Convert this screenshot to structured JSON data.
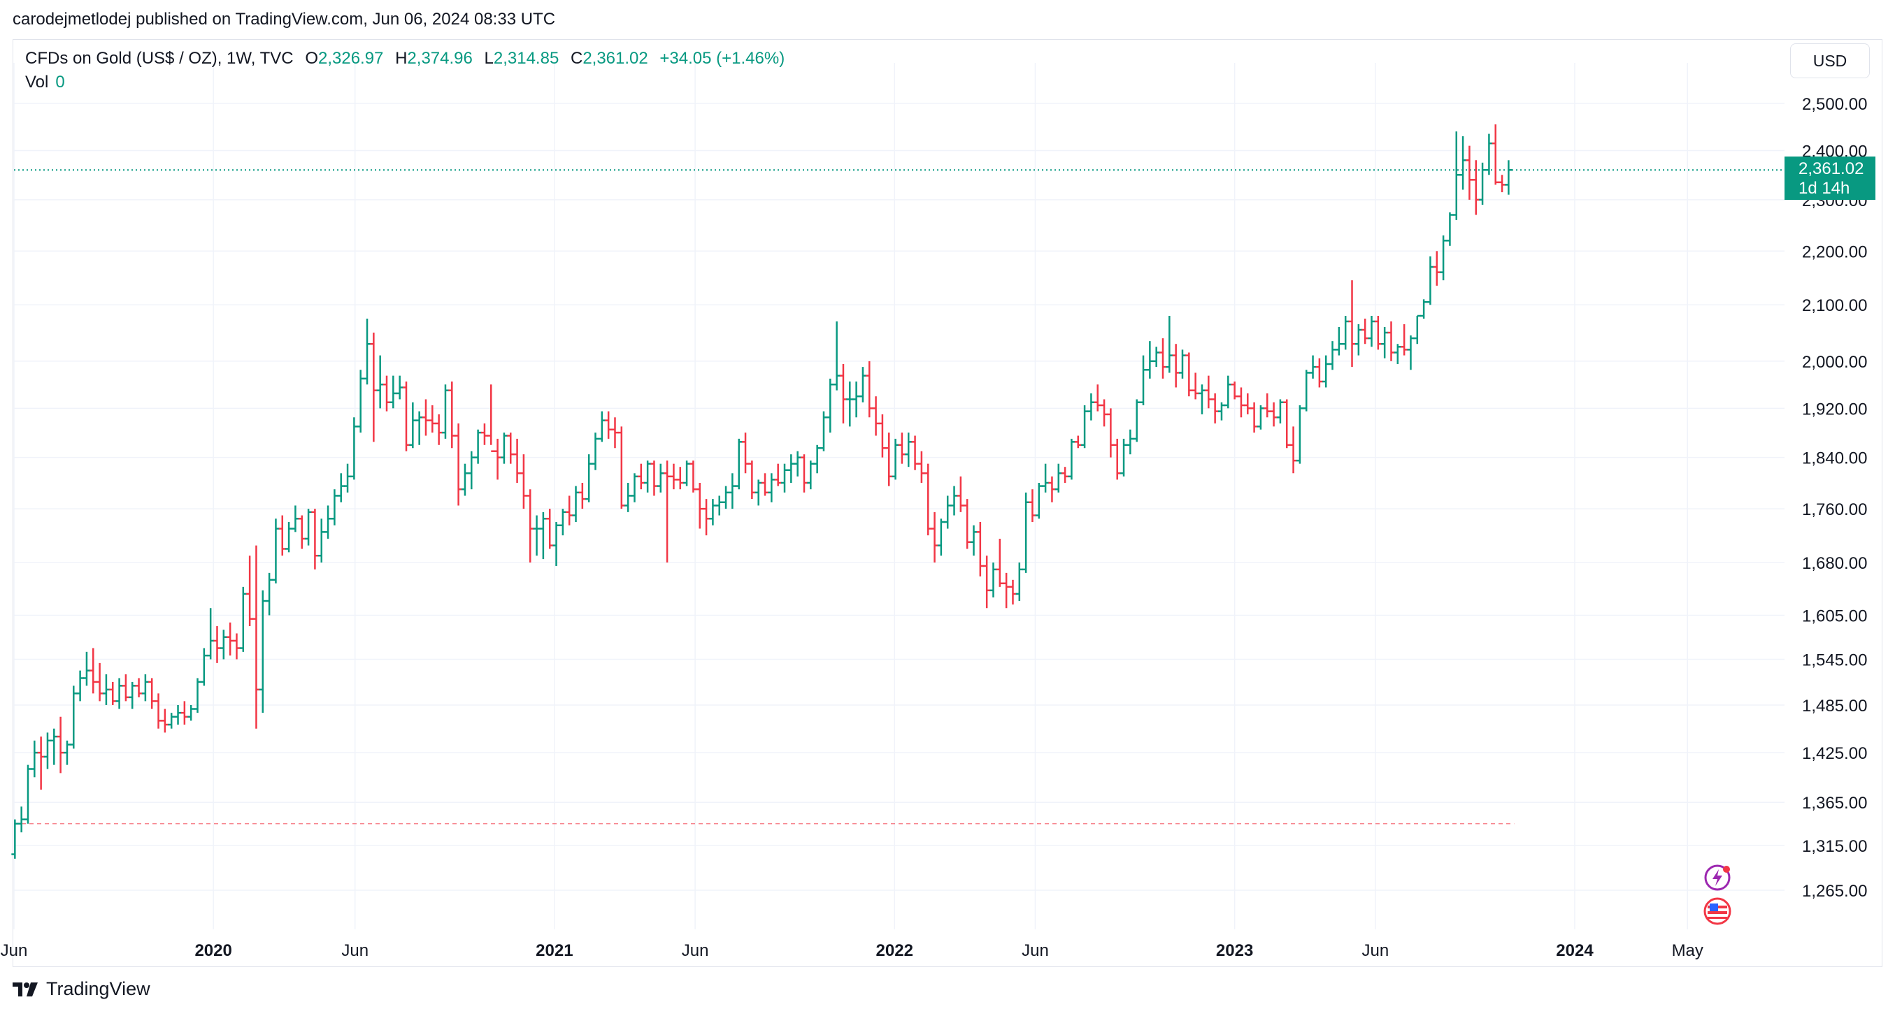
{
  "header": {
    "published_by": "carodejmetlodej published on TradingView.com, Jun 06, 2024 08:33 UTC"
  },
  "legend": {
    "symbol": "CFDs on Gold (US$ / OZ), 1W, TVC",
    "open_label": "O",
    "open": "2,326.97",
    "high_label": "H",
    "high": "2,374.96",
    "low_label": "L",
    "low": "2,314.85",
    "close_label": "C",
    "close": "2,361.02",
    "change": "+34.05 (+1.46%)",
    "vol_label": "Vol",
    "vol": "0"
  },
  "currency_button": "USD",
  "last_price": {
    "value": "2,361.02",
    "countdown": "1d 14h"
  },
  "footer": {
    "brand": "TradingView"
  },
  "colors": {
    "up": "#089981",
    "down": "#f23645",
    "grid": "#f0f3fa",
    "text": "#131722"
  },
  "icons": [
    "lightning-alert-icon",
    "us-flag-icon",
    "tradingview-logo-icon"
  ],
  "chart_data": {
    "type": "candlestick",
    "timeframe": "1W",
    "y_scale": "log",
    "ylim": [
      1220,
      2580
    ],
    "y_ticks": [
      "2,500.00",
      "2,400.00",
      "2,300.00",
      "2,200.00",
      "2,100.00",
      "2,000.00",
      "1,920.00",
      "1,840.00",
      "1,760.00",
      "1,680.00",
      "1,605.00",
      "1,545.00",
      "1,485.00",
      "1,425.00",
      "1,365.00",
      "1,315.00",
      "1,265.00"
    ],
    "x_ticks": [
      {
        "label": "Jun",
        "bold": false,
        "date": "2019-06-01"
      },
      {
        "label": "2020",
        "bold": true,
        "date": "2020-01-01"
      },
      {
        "label": "Jun",
        "bold": false,
        "date": "2020-06-01"
      },
      {
        "label": "2021",
        "bold": true,
        "date": "2021-01-01"
      },
      {
        "label": "Jun",
        "bold": false,
        "date": "2021-06-01"
      },
      {
        "label": "2022",
        "bold": true,
        "date": "2022-01-01"
      },
      {
        "label": "Jun",
        "bold": false,
        "date": "2022-06-01"
      },
      {
        "label": "2023",
        "bold": true,
        "date": "2023-01-01"
      },
      {
        "label": "Jun",
        "bold": false,
        "date": "2023-06-01"
      },
      {
        "label": "2024",
        "bold": true,
        "date": "2024-01-01"
      },
      {
        "label": "May",
        "bold": false,
        "date": "2024-05-01"
      }
    ],
    "first_bar_date": "2019-06-02",
    "bars": [
      [
        1305,
        1345,
        1300,
        1340
      ],
      [
        1340,
        1360,
        1330,
        1345
      ],
      [
        1345,
        1410,
        1340,
        1405
      ],
      [
        1405,
        1440,
        1395,
        1425
      ],
      [
        1425,
        1445,
        1380,
        1420
      ],
      [
        1420,
        1450,
        1405,
        1440
      ],
      [
        1440,
        1455,
        1410,
        1445
      ],
      [
        1445,
        1470,
        1400,
        1425
      ],
      [
        1425,
        1440,
        1410,
        1435
      ],
      [
        1435,
        1510,
        1430,
        1500
      ],
      [
        1500,
        1530,
        1490,
        1520
      ],
      [
        1520,
        1555,
        1510,
        1530
      ],
      [
        1530,
        1560,
        1500,
        1515
      ],
      [
        1515,
        1540,
        1490,
        1500
      ],
      [
        1500,
        1525,
        1485,
        1505
      ],
      [
        1505,
        1515,
        1485,
        1490
      ],
      [
        1490,
        1520,
        1480,
        1510
      ],
      [
        1510,
        1525,
        1490,
        1495
      ],
      [
        1495,
        1515,
        1480,
        1510
      ],
      [
        1510,
        1520,
        1495,
        1500
      ],
      [
        1500,
        1525,
        1490,
        1515
      ],
      [
        1515,
        1520,
        1480,
        1490
      ],
      [
        1490,
        1500,
        1455,
        1465
      ],
      [
        1465,
        1480,
        1450,
        1460
      ],
      [
        1460,
        1475,
        1455,
        1470
      ],
      [
        1470,
        1485,
        1460,
        1475
      ],
      [
        1475,
        1490,
        1460,
        1470
      ],
      [
        1470,
        1485,
        1465,
        1480
      ],
      [
        1480,
        1520,
        1475,
        1515
      ],
      [
        1515,
        1560,
        1510,
        1550
      ],
      [
        1550,
        1615,
        1545,
        1570
      ],
      [
        1570,
        1590,
        1540,
        1560
      ],
      [
        1560,
        1585,
        1545,
        1575
      ],
      [
        1575,
        1595,
        1550,
        1570
      ],
      [
        1570,
        1580,
        1545,
        1560
      ],
      [
        1560,
        1645,
        1555,
        1635
      ],
      [
        1635,
        1690,
        1590,
        1600
      ],
      [
        1600,
        1705,
        1455,
        1505
      ],
      [
        1505,
        1640,
        1475,
        1625
      ],
      [
        1625,
        1665,
        1605,
        1655
      ],
      [
        1655,
        1745,
        1650,
        1730
      ],
      [
        1730,
        1750,
        1690,
        1700
      ],
      [
        1700,
        1740,
        1695,
        1730
      ],
      [
        1730,
        1765,
        1725,
        1745
      ],
      [
        1745,
        1750,
        1700,
        1715
      ],
      [
        1715,
        1760,
        1705,
        1755
      ],
      [
        1755,
        1760,
        1670,
        1690
      ],
      [
        1690,
        1745,
        1680,
        1725
      ],
      [
        1725,
        1765,
        1715,
        1745
      ],
      [
        1745,
        1790,
        1735,
        1780
      ],
      [
        1780,
        1815,
        1770,
        1795
      ],
      [
        1795,
        1830,
        1785,
        1810
      ],
      [
        1810,
        1905,
        1805,
        1890
      ],
      [
        1890,
        1985,
        1880,
        1970
      ],
      [
        1970,
        2075,
        1960,
        2030
      ],
      [
        2030,
        2050,
        1865,
        1950
      ],
      [
        1950,
        2010,
        1920,
        1960
      ],
      [
        1960,
        1975,
        1915,
        1930
      ],
      [
        1930,
        1975,
        1920,
        1945
      ],
      [
        1945,
        1975,
        1935,
        1955
      ],
      [
        1955,
        1965,
        1850,
        1860
      ],
      [
        1860,
        1930,
        1855,
        1900
      ],
      [
        1900,
        1915,
        1860,
        1905
      ],
      [
        1905,
        1935,
        1875,
        1900
      ],
      [
        1900,
        1925,
        1880,
        1895
      ],
      [
        1895,
        1910,
        1860,
        1880
      ],
      [
        1880,
        1960,
        1870,
        1950
      ],
      [
        1950,
        1965,
        1855,
        1875
      ],
      [
        1875,
        1895,
        1765,
        1790
      ],
      [
        1790,
        1830,
        1780,
        1815
      ],
      [
        1815,
        1850,
        1790,
        1840
      ],
      [
        1840,
        1885,
        1830,
        1880
      ],
      [
        1880,
        1895,
        1860,
        1875
      ],
      [
        1875,
        1960,
        1860,
        1850
      ],
      [
        1850,
        1870,
        1805,
        1840
      ],
      [
        1840,
        1880,
        1830,
        1875
      ],
      [
        1875,
        1880,
        1830,
        1845
      ],
      [
        1845,
        1870,
        1800,
        1815
      ],
      [
        1815,
        1845,
        1760,
        1780
      ],
      [
        1780,
        1790,
        1680,
        1730
      ],
      [
        1730,
        1750,
        1690,
        1730
      ],
      [
        1730,
        1755,
        1685,
        1745
      ],
      [
        1745,
        1760,
        1700,
        1705
      ],
      [
        1705,
        1740,
        1675,
        1735
      ],
      [
        1735,
        1760,
        1720,
        1755
      ],
      [
        1755,
        1780,
        1735,
        1750
      ],
      [
        1750,
        1795,
        1740,
        1785
      ],
      [
        1785,
        1800,
        1760,
        1775
      ],
      [
        1775,
        1845,
        1770,
        1830
      ],
      [
        1830,
        1880,
        1820,
        1870
      ],
      [
        1870,
        1915,
        1865,
        1900
      ],
      [
        1900,
        1915,
        1870,
        1885
      ],
      [
        1885,
        1905,
        1855,
        1880
      ],
      [
        1880,
        1890,
        1760,
        1765
      ],
      [
        1765,
        1800,
        1755,
        1780
      ],
      [
        1780,
        1815,
        1770,
        1810
      ],
      [
        1810,
        1830,
        1790,
        1800
      ],
      [
        1800,
        1835,
        1785,
        1830
      ],
      [
        1830,
        1835,
        1780,
        1795
      ],
      [
        1795,
        1830,
        1785,
        1815
      ],
      [
        1815,
        1835,
        1680,
        1810
      ],
      [
        1810,
        1830,
        1790,
        1805
      ],
      [
        1805,
        1825,
        1790,
        1800
      ],
      [
        1800,
        1835,
        1795,
        1830
      ],
      [
        1830,
        1835,
        1785,
        1790
      ],
      [
        1790,
        1800,
        1730,
        1760
      ],
      [
        1760,
        1775,
        1720,
        1745
      ],
      [
        1745,
        1775,
        1735,
        1765
      ],
      [
        1765,
        1780,
        1750,
        1770
      ],
      [
        1770,
        1795,
        1760,
        1785
      ],
      [
        1785,
        1815,
        1760,
        1795
      ],
      [
        1795,
        1870,
        1790,
        1865
      ],
      [
        1865,
        1880,
        1815,
        1830
      ],
      [
        1830,
        1835,
        1775,
        1785
      ],
      [
        1785,
        1805,
        1765,
        1800
      ],
      [
        1800,
        1815,
        1780,
        1785
      ],
      [
        1785,
        1815,
        1770,
        1805
      ],
      [
        1805,
        1830,
        1795,
        1800
      ],
      [
        1800,
        1830,
        1785,
        1820
      ],
      [
        1820,
        1845,
        1800,
        1830
      ],
      [
        1830,
        1850,
        1810,
        1840
      ],
      [
        1840,
        1845,
        1785,
        1800
      ],
      [
        1800,
        1835,
        1790,
        1830
      ],
      [
        1830,
        1860,
        1815,
        1855
      ],
      [
        1855,
        1915,
        1850,
        1905
      ],
      [
        1905,
        1970,
        1880,
        1960
      ],
      [
        1960,
        2070,
        1950,
        1975
      ],
      [
        1975,
        1995,
        1895,
        1935
      ],
      [
        1935,
        1965,
        1890,
        1935
      ],
      [
        1935,
        1965,
        1905,
        1940
      ],
      [
        1940,
        1990,
        1930,
        1975
      ],
      [
        1975,
        2000,
        1905,
        1920
      ],
      [
        1920,
        1940,
        1875,
        1895
      ],
      [
        1895,
        1910,
        1840,
        1855
      ],
      [
        1855,
        1880,
        1795,
        1810
      ],
      [
        1810,
        1870,
        1805,
        1860
      ],
      [
        1860,
        1880,
        1830,
        1845
      ],
      [
        1845,
        1880,
        1825,
        1865
      ],
      [
        1865,
        1875,
        1820,
        1830
      ],
      [
        1830,
        1850,
        1800,
        1815
      ],
      [
        1815,
        1830,
        1720,
        1730
      ],
      [
        1730,
        1755,
        1680,
        1705
      ],
      [
        1705,
        1745,
        1690,
        1740
      ],
      [
        1740,
        1780,
        1730,
        1765
      ],
      [
        1765,
        1795,
        1750,
        1780
      ],
      [
        1780,
        1810,
        1755,
        1765
      ],
      [
        1765,
        1775,
        1700,
        1710
      ],
      [
        1710,
        1735,
        1690,
        1725
      ],
      [
        1725,
        1740,
        1660,
        1675
      ],
      [
        1675,
        1690,
        1615,
        1640
      ],
      [
        1640,
        1680,
        1630,
        1670
      ],
      [
        1670,
        1715,
        1645,
        1650
      ],
      [
        1650,
        1665,
        1615,
        1645
      ],
      [
        1645,
        1655,
        1620,
        1635
      ],
      [
        1635,
        1680,
        1625,
        1670
      ],
      [
        1670,
        1785,
        1665,
        1770
      ],
      [
        1770,
        1790,
        1740,
        1750
      ],
      [
        1750,
        1800,
        1745,
        1795
      ],
      [
        1795,
        1830,
        1785,
        1800
      ],
      [
        1800,
        1810,
        1770,
        1790
      ],
      [
        1790,
        1830,
        1785,
        1815
      ],
      [
        1815,
        1825,
        1800,
        1810
      ],
      [
        1810,
        1870,
        1805,
        1865
      ],
      [
        1865,
        1875,
        1855,
        1860
      ],
      [
        1860,
        1925,
        1855,
        1915
      ],
      [
        1915,
        1945,
        1900,
        1930
      ],
      [
        1930,
        1960,
        1915,
        1925
      ],
      [
        1925,
        1935,
        1890,
        1910
      ],
      [
        1910,
        1920,
        1840,
        1860
      ],
      [
        1860,
        1870,
        1805,
        1815
      ],
      [
        1815,
        1870,
        1810,
        1860
      ],
      [
        1860,
        1885,
        1845,
        1870
      ],
      [
        1870,
        1935,
        1865,
        1930
      ],
      [
        1930,
        2010,
        1925,
        1985
      ],
      [
        1985,
        2035,
        1970,
        2000
      ],
      [
        2000,
        2025,
        1990,
        2015
      ],
      [
        2015,
        2040,
        1970,
        1990
      ],
      [
        1990,
        2080,
        1980,
        2010
      ],
      [
        2010,
        2030,
        1955,
        1980
      ],
      [
        1980,
        2020,
        1970,
        2010
      ],
      [
        2010,
        2015,
        1940,
        1950
      ],
      [
        1950,
        1980,
        1935,
        1945
      ],
      [
        1945,
        1960,
        1910,
        1950
      ],
      [
        1950,
        1975,
        1920,
        1935
      ],
      [
        1935,
        1945,
        1895,
        1915
      ],
      [
        1915,
        1930,
        1900,
        1925
      ],
      [
        1925,
        1975,
        1920,
        1960
      ],
      [
        1960,
        1965,
        1935,
        1940
      ],
      [
        1940,
        1955,
        1905,
        1925
      ],
      [
        1925,
        1945,
        1910,
        1920
      ],
      [
        1920,
        1930,
        1880,
        1890
      ],
      [
        1890,
        1925,
        1885,
        1920
      ],
      [
        1920,
        1945,
        1905,
        1915
      ],
      [
        1915,
        1930,
        1890,
        1905
      ],
      [
        1905,
        1935,
        1895,
        1930
      ],
      [
        1930,
        1935,
        1855,
        1860
      ],
      [
        1860,
        1890,
        1815,
        1835
      ],
      [
        1835,
        1925,
        1830,
        1920
      ],
      [
        1920,
        1985,
        1915,
        1980
      ],
      [
        1980,
        2010,
        1970,
        1990
      ],
      [
        1990,
        2005,
        1955,
        1965
      ],
      [
        1965,
        2010,
        1955,
        1995
      ],
      [
        1995,
        2035,
        1985,
        2020
      ],
      [
        2020,
        2060,
        2010,
        2030
      ],
      [
        2030,
        2080,
        2020,
        2070
      ],
      [
        2070,
        2145,
        1990,
        2030
      ],
      [
        2030,
        2065,
        2010,
        2055
      ],
      [
        2055,
        2075,
        2030,
        2040
      ],
      [
        2040,
        2080,
        2025,
        2070
      ],
      [
        2070,
        2080,
        2020,
        2030
      ],
      [
        2030,
        2060,
        2005,
        2050
      ],
      [
        2050,
        2070,
        2000,
        2015
      ],
      [
        2015,
        2030,
        1995,
        2025
      ],
      [
        2025,
        2065,
        2010,
        2020
      ],
      [
        2020,
        2045,
        1985,
        2040
      ],
      [
        2040,
        2080,
        2030,
        2080
      ],
      [
        2080,
        2110,
        2075,
        2105
      ],
      [
        2105,
        2190,
        2100,
        2170
      ],
      [
        2170,
        2200,
        2135,
        2160
      ],
      [
        2160,
        2230,
        2145,
        2220
      ],
      [
        2220,
        2275,
        2210,
        2270
      ],
      [
        2270,
        2440,
        2260,
        2350
      ],
      [
        2350,
        2430,
        2320,
        2380
      ],
      [
        2380,
        2410,
        2300,
        2340
      ],
      [
        2340,
        2380,
        2270,
        2300
      ],
      [
        2300,
        2375,
        2290,
        2360
      ],
      [
        2360,
        2435,
        2350,
        2415
      ],
      [
        2415,
        2455,
        2330,
        2335
      ],
      [
        2335,
        2350,
        2315,
        2330
      ],
      [
        2330,
        2380,
        2310,
        2360
      ]
    ]
  }
}
